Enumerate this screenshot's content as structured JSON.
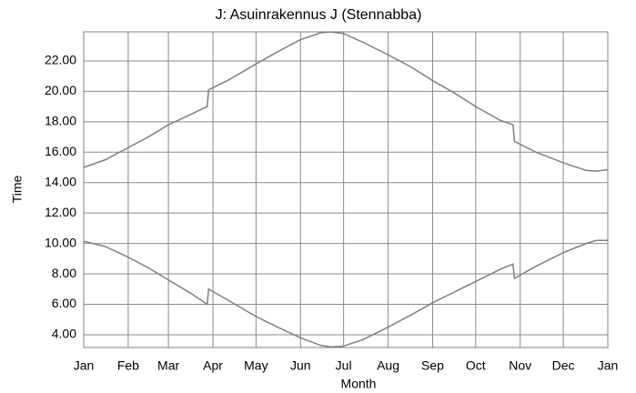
{
  "chart_data": {
    "type": "line",
    "title": "J: Asuinrakennus J (Stennabba)",
    "x_label": "Month",
    "y_label": "Time",
    "x": [
      0,
      15,
      31,
      45,
      59,
      75,
      86,
      87,
      100,
      120,
      135,
      151,
      165,
      172,
      181,
      195,
      212,
      228,
      243,
      258,
      273,
      290,
      299,
      300,
      315,
      334,
      350,
      357,
      365
    ],
    "series": [
      {
        "color": "#808080",
        "values": [
          15.0,
          15.5,
          16.3,
          17.0,
          17.8,
          18.5,
          19.0,
          20.1,
          20.7,
          21.8,
          22.6,
          23.4,
          23.85,
          23.9,
          23.8,
          23.2,
          22.4,
          21.6,
          20.7,
          19.9,
          19.0,
          18.1,
          17.8,
          16.7,
          16.0,
          15.3,
          14.8,
          14.75,
          14.85
        ]
      },
      {
        "color": "#808080",
        "values": [
          10.15,
          9.8,
          9.1,
          8.4,
          7.6,
          6.7,
          6.0,
          7.0,
          6.3,
          5.2,
          4.5,
          3.8,
          3.3,
          3.2,
          3.25,
          3.7,
          4.5,
          5.3,
          6.1,
          6.8,
          7.5,
          8.3,
          8.65,
          7.7,
          8.5,
          9.4,
          10.0,
          10.2,
          10.2
        ]
      }
    ],
    "xlim": [
      0,
      365
    ],
    "xticks": [
      {
        "value": 0,
        "label": "Jan"
      },
      {
        "value": 31,
        "label": "Feb"
      },
      {
        "value": 59,
        "label": "Mar"
      },
      {
        "value": 90,
        "label": "Apr"
      },
      {
        "value": 120,
        "label": "May"
      },
      {
        "value": 151,
        "label": "Jun"
      },
      {
        "value": 181,
        "label": "Jul"
      },
      {
        "value": 212,
        "label": "Aug"
      },
      {
        "value": 243,
        "label": "Sep"
      },
      {
        "value": 273,
        "label": "Oct"
      },
      {
        "value": 304,
        "label": "Nov"
      },
      {
        "value": 334,
        "label": "Dec"
      },
      {
        "value": 365,
        "label": "Jan"
      }
    ],
    "ylim": [
      3.16,
      23.91
    ],
    "yticks": [
      {
        "value": 4,
        "label": "4.00"
      },
      {
        "value": 6,
        "label": "6.00"
      },
      {
        "value": 8,
        "label": "8.00"
      },
      {
        "value": 10,
        "label": "10.00"
      },
      {
        "value": 12,
        "label": "12.00"
      },
      {
        "value": 14,
        "label": "14.00"
      },
      {
        "value": 16,
        "label": "16.00"
      },
      {
        "value": 18,
        "label": "18.00"
      },
      {
        "value": 20,
        "label": "20.00"
      },
      {
        "value": 22,
        "label": "22.00"
      }
    ],
    "grid": true
  }
}
